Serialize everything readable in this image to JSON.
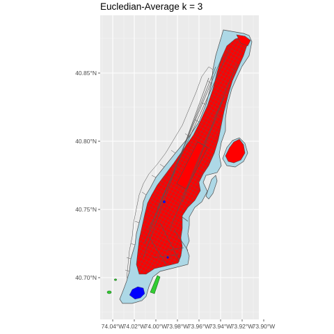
{
  "title": "Eucledian-Average k = 3",
  "chart_data": {
    "type": "map",
    "title": "Eucledian-Average k = 3",
    "x_ticks": [
      "74.04°W",
      "74.02°W",
      "74.00°W",
      "73.98°W",
      "73.96°W",
      "73.94°W",
      "73.92°W",
      "73.90°W"
    ],
    "y_ticks": [
      "40.70°N",
      "40.75°N",
      "40.80°N",
      "40.85°N"
    ],
    "xlim": [
      -74.05,
      -73.9
    ],
    "ylim": [
      40.68,
      40.88
    ],
    "grid": true,
    "colors": {
      "panel_background": "#ebebeb",
      "gridline": "#ffffff",
      "base_fill": "#add8e6",
      "border": "#4d4d4d",
      "cluster_1": "#ff0000",
      "cluster_2": "#0000ff",
      "cluster_3": "#32cd32"
    }
  }
}
